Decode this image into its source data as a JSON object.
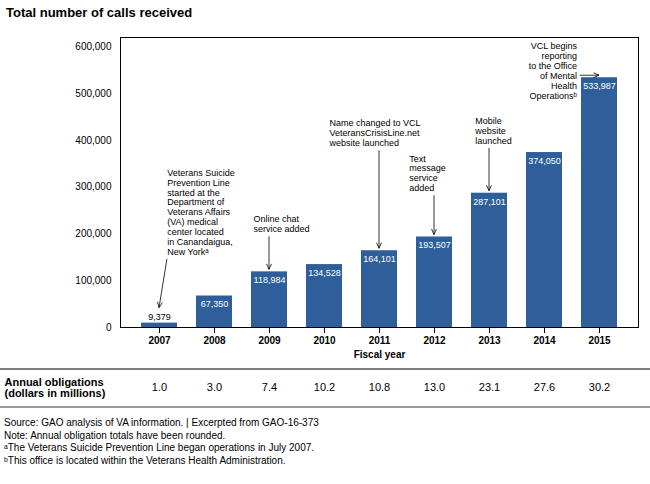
{
  "chart_data": {
    "type": "bar",
    "title": "Total number of calls received",
    "xlabel": "Fiscal year",
    "categories": [
      "2007",
      "2008",
      "2009",
      "2010",
      "2011",
      "2012",
      "2013",
      "2014",
      "2015"
    ],
    "values": [
      9379,
      67350,
      118984,
      134528,
      164101,
      193507,
      287101,
      374050,
      533987
    ],
    "value_labels": [
      "9,379",
      "67,350",
      "118,984",
      "134,528",
      "164,101",
      "193,507",
      "287,101",
      "374,050",
      "533,987"
    ],
    "data_labels": true,
    "color": "#2E5F9A",
    "ylim": [
      0,
      620000
    ],
    "yticks": [
      0,
      {
        "value": 100000,
        "label": "100,000"
      },
      {
        "value": 200000,
        "label": "200,000"
      },
      {
        "value": 300000,
        "label": "300,000"
      },
      {
        "value": 400000,
        "label": "400,000"
      },
      {
        "value": 500000,
        "label": "500,000"
      },
      {
        "value": 600000,
        "label": "600,000"
      }
    ],
    "grid": false,
    "annotations": [
      {
        "text": "Veterans Suicide\nPrevention Line\nstarted at the\nDepartment of\nVeterans Affairs\n(VA) medical\ncenter located\nin Canandaigua,\nNew Yorkᵃ",
        "category": "2007"
      },
      {
        "text": "Online chat\nservice added",
        "category": "2009"
      },
      {
        "text": "Name changed to VCL\nVeteransCrisisLine.net\nwebsite launched",
        "category": "2011"
      },
      {
        "text": "Text\nmessage\nservice\nadded",
        "category": "2012"
      },
      {
        "text": "Mobile\nwebsite\nlaunched",
        "category": "2013"
      },
      {
        "text": "VCL begins\nreporting\nto the Office\nof Mental\nHealth\nOperationsᵇ",
        "category": "2015"
      }
    ],
    "obligations": {
      "label": "Annual obligations\n(dollars in millions)",
      "values": [
        1.0,
        3.0,
        7.4,
        10.2,
        10.8,
        13.0,
        23.1,
        27.6,
        30.2
      ],
      "value_labels": [
        "1.0",
        "3.0",
        "7.4",
        "10.2",
        "10.8",
        "13.0",
        "23.1",
        "27.6",
        "30.2"
      ]
    },
    "source": "Source: GAO analysis of VA information.  |  Excerpted from GAO-16-373",
    "notes": [
      "Note: Annual obligation totals have been rounded.",
      "ᵃThe Veterans Suicide Prevention Line began operations in July 2007.",
      "ᵇThis office is located within the Veterans Health Administration."
    ]
  }
}
